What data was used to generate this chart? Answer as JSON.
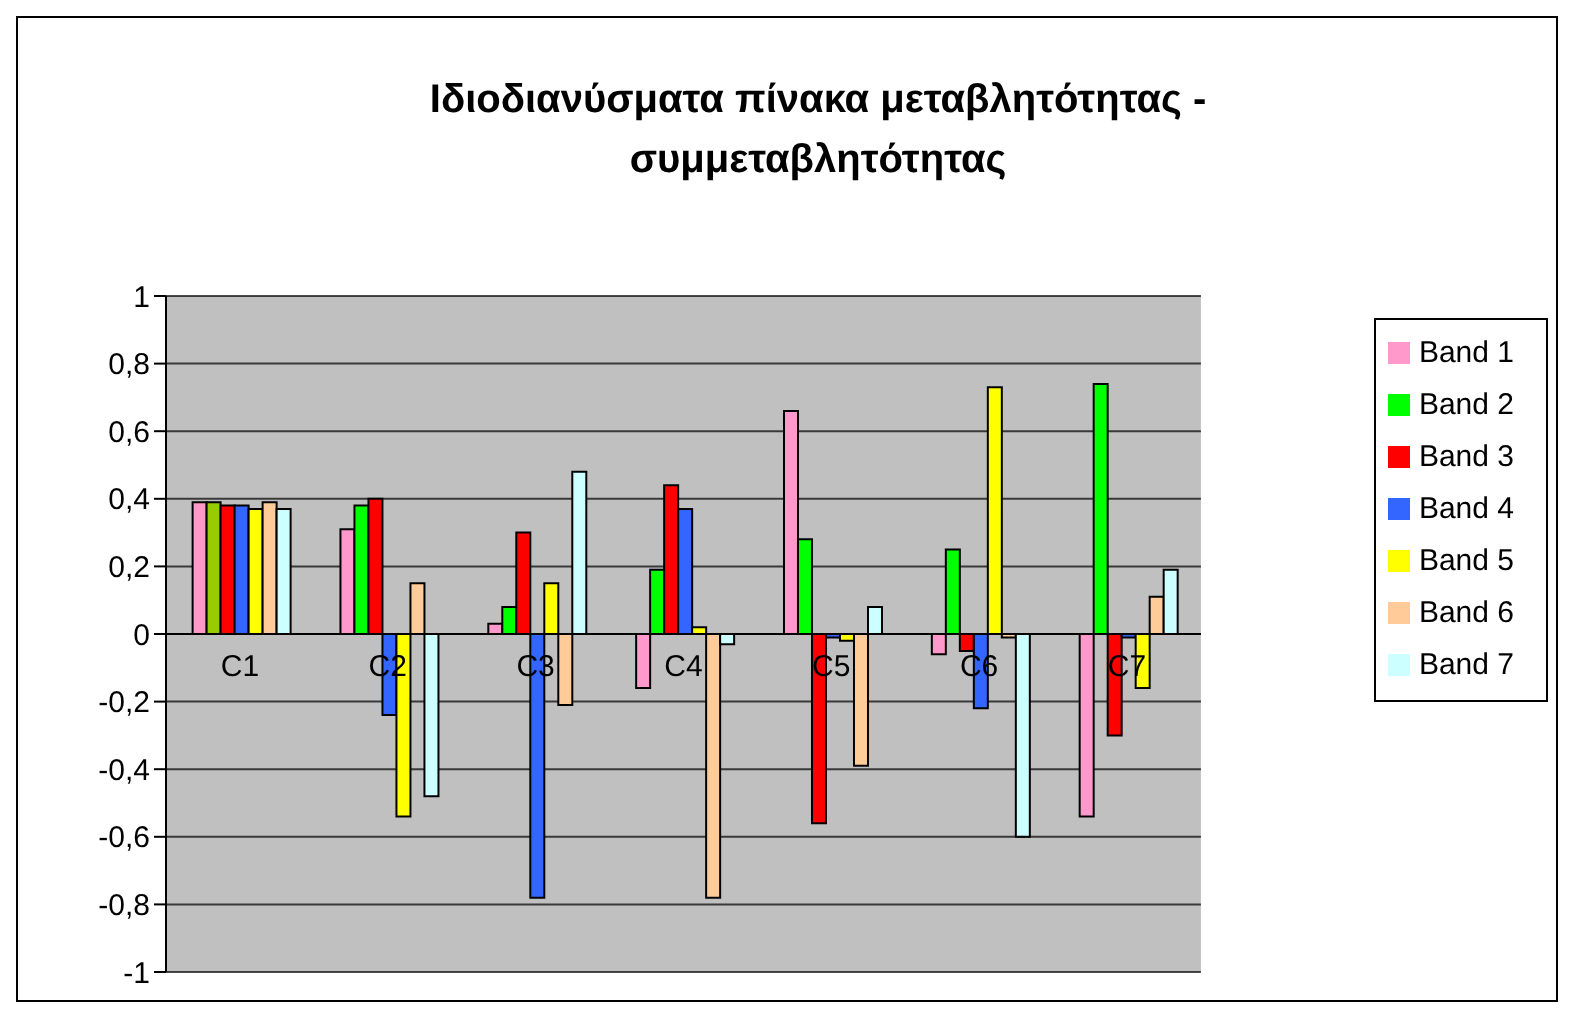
{
  "chart_data": {
    "type": "bar",
    "title": "Ιδιοδιανύσματα πίνακα μεταβλητότητας - συμμεταβλητότητας",
    "categories": [
      "C1",
      "C2",
      "C3",
      "C4",
      "C5",
      "C6",
      "C7"
    ],
    "series": [
      {
        "name": "Band 1",
        "color": "#ff99cc",
        "values": [
          0.39,
          0.31,
          0.03,
          -0.16,
          0.66,
          -0.06,
          -0.54
        ]
      },
      {
        "name": "Band 2",
        "color": "#00ff00",
        "colors": [
          "#99cc00",
          "#00ff00",
          "#00ff00",
          "#00ff00",
          "#00ff00",
          "#00ff00",
          "#00ff00"
        ],
        "values": [
          0.39,
          0.38,
          0.08,
          0.19,
          0.28,
          0.25,
          0.74
        ]
      },
      {
        "name": "Band 3",
        "color": "#ff0000",
        "values": [
          0.38,
          0.4,
          0.3,
          0.44,
          -0.56,
          -0.05,
          -0.3
        ]
      },
      {
        "name": "Band 4",
        "color": "#3366ff",
        "values": [
          0.38,
          -0.24,
          -0.78,
          0.37,
          -0.01,
          -0.22,
          -0.01
        ]
      },
      {
        "name": "Band 5",
        "color": "#ffff00",
        "values": [
          0.37,
          -0.54,
          0.15,
          0.02,
          -0.02,
          0.73,
          -0.16
        ]
      },
      {
        "name": "Band 6",
        "color": "#ffcc99",
        "values": [
          0.39,
          0.15,
          -0.21,
          -0.78,
          -0.39,
          -0.01,
          0.11
        ]
      },
      {
        "name": "Band 7",
        "color": "#ccffff",
        "values": [
          0.37,
          -0.48,
          0.48,
          -0.03,
          0.08,
          -0.6,
          0.19
        ]
      }
    ],
    "ylim": [
      -1,
      1
    ],
    "yticks": [
      -1,
      {
        "value": -0.8,
        "label": "-0,8"
      },
      {
        "value": -0.6,
        "label": "-0,6"
      },
      {
        "value": -0.4,
        "label": "-0,4"
      },
      {
        "value": -0.2,
        "label": "-0,2"
      },
      0,
      {
        "value": 0.2,
        "label": "0,2"
      },
      {
        "value": 0.4,
        "label": "0,4"
      },
      {
        "value": 0.6,
        "label": "0,6"
      },
      {
        "value": 0.8,
        "label": "0,8"
      },
      1
    ],
    "grid": "y",
    "legend": "right"
  }
}
